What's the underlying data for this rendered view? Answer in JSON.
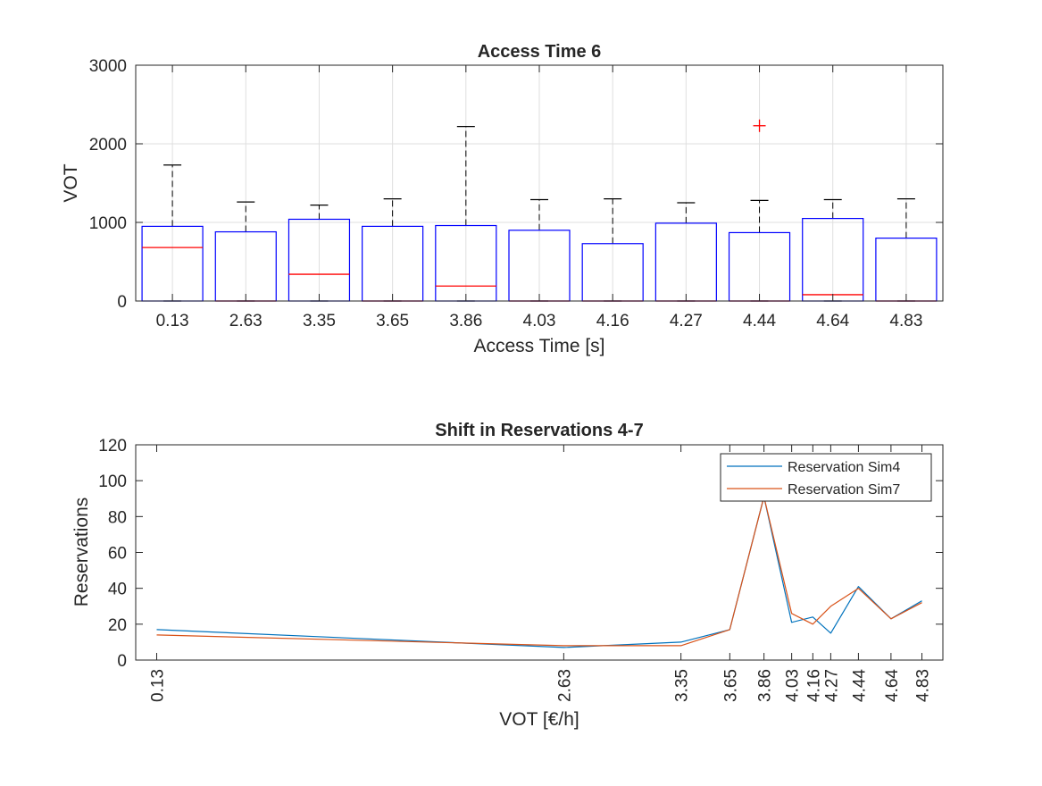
{
  "chart_data": [
    {
      "type": "box",
      "title": "Access Time 6",
      "xlabel": "Access Time [s]",
      "ylabel": "VOT",
      "ylim": [
        0,
        3000
      ],
      "yticks": [
        "0",
        "1000",
        "2000",
        "3000"
      ],
      "grid": true,
      "categories": [
        "0.13",
        "2.63",
        "3.35",
        "3.65",
        "3.86",
        "4.03",
        "4.16",
        "4.27",
        "4.44",
        "4.64",
        "4.83"
      ],
      "boxes": [
        {
          "q1": 0,
          "median": 680,
          "q3": 950,
          "whisker_low": 0,
          "whisker_high": 1730,
          "outliers": []
        },
        {
          "q1": 0,
          "median": 0,
          "q3": 880,
          "whisker_low": 0,
          "whisker_high": 1260,
          "outliers": []
        },
        {
          "q1": 0,
          "median": 340,
          "q3": 1040,
          "whisker_low": 0,
          "whisker_high": 1220,
          "outliers": []
        },
        {
          "q1": 0,
          "median": 0,
          "q3": 950,
          "whisker_low": 0,
          "whisker_high": 1300,
          "outliers": []
        },
        {
          "q1": 0,
          "median": 190,
          "q3": 960,
          "whisker_low": 0,
          "whisker_high": 2220,
          "outliers": []
        },
        {
          "q1": 0,
          "median": 0,
          "q3": 900,
          "whisker_low": 0,
          "whisker_high": 1290,
          "outliers": []
        },
        {
          "q1": 0,
          "median": 0,
          "q3": 730,
          "whisker_low": 0,
          "whisker_high": 1300,
          "outliers": []
        },
        {
          "q1": 0,
          "median": 0,
          "q3": 990,
          "whisker_low": 0,
          "whisker_high": 1250,
          "outliers": []
        },
        {
          "q1": 0,
          "median": 0,
          "q3": 870,
          "whisker_low": 0,
          "whisker_high": 1280,
          "outliers": [
            2230
          ]
        },
        {
          "q1": 0,
          "median": 80,
          "q3": 1050,
          "whisker_low": 0,
          "whisker_high": 1290,
          "outliers": []
        },
        {
          "q1": 0,
          "median": 0,
          "q3": 800,
          "whisker_low": 0,
          "whisker_high": 1300,
          "outliers": []
        }
      ],
      "colors": {
        "box": "#0000ff",
        "median": "#ff0000",
        "whisker": "#000000",
        "outlier": "#ff0000"
      }
    },
    {
      "type": "line",
      "title": "Shift in Reservations 4-7",
      "xlabel": "VOT [€/h]",
      "ylabel": "Reservations",
      "xlim": [
        0.13,
        4.83
      ],
      "ylim": [
        0,
        120
      ],
      "yticks": [
        "0",
        "20",
        "40",
        "60",
        "80",
        "100",
        "120"
      ],
      "x": [
        0.13,
        2.63,
        3.35,
        3.65,
        3.86,
        4.03,
        4.16,
        4.27,
        4.44,
        4.64,
        4.83
      ],
      "xticks": [
        "0.13",
        "2.63",
        "3.35",
        "3.65",
        "3.86",
        "4.03",
        "4.16",
        "4.27",
        "4.44",
        "4.64",
        "4.83"
      ],
      "series": [
        {
          "name": "Reservation Sim4",
          "color": "#0072bd",
          "values": [
            17,
            7,
            10,
            17,
            91,
            21,
            24,
            15,
            41,
            23,
            33
          ]
        },
        {
          "name": "Reservation Sim7",
          "color": "#d95319",
          "values": [
            14,
            8,
            8,
            17,
            91,
            26,
            20,
            30,
            40,
            23,
            32
          ]
        }
      ],
      "legend": "top-right"
    }
  ]
}
